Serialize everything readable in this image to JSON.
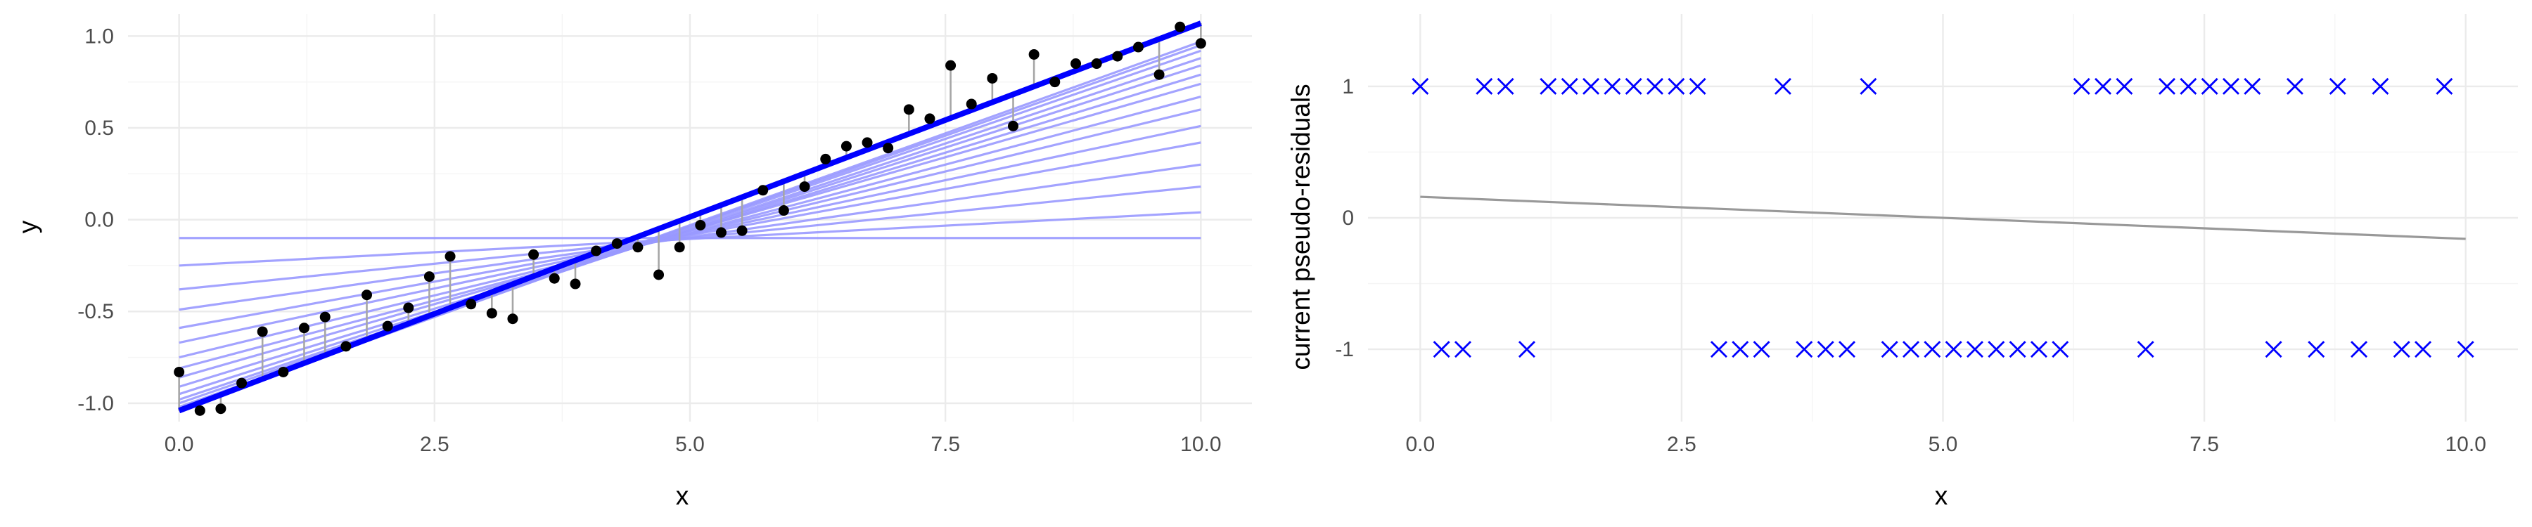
{
  "colors": {
    "fit_line": "#0000ff",
    "history_line": "#9999ff",
    "points": "#000000",
    "residual_segment": "#a6a6a6",
    "smoother": "#999999",
    "cross": "#0000ff",
    "grid_major": "#ebebeb",
    "grid_minor": "#f5f5f5"
  },
  "chart_data": [
    {
      "type": "scatter",
      "xlabel": "x",
      "ylabel": "y",
      "xlim": [
        -0.5,
        10.5
      ],
      "ylim": [
        -1.1,
        1.12
      ],
      "x_ticks": [
        0,
        2.5,
        5,
        7.5,
        10
      ],
      "x_tick_labels": [
        "0.0",
        "2.5",
        "5.0",
        "7.5",
        "10.0"
      ],
      "y_ticks": [
        -1,
        -0.5,
        0,
        0.5,
        1
      ],
      "y_tick_labels": [
        "-1.0",
        "-0.5",
        "0.0",
        "0.5",
        "1.0"
      ],
      "grid": true,
      "x": [
        0,
        0.204,
        0.408,
        0.612,
        0.816,
        1.02,
        1.224,
        1.429,
        1.633,
        1.837,
        2.041,
        2.245,
        2.449,
        2.653,
        2.857,
        3.061,
        3.265,
        3.469,
        3.673,
        3.878,
        4.082,
        4.286,
        4.49,
        4.694,
        4.898,
        5.102,
        5.306,
        5.51,
        5.714,
        5.918,
        6.122,
        6.327,
        6.531,
        6.735,
        6.939,
        7.143,
        7.347,
        7.551,
        7.755,
        7.959,
        8.163,
        8.367,
        8.571,
        8.776,
        8.98,
        9.184,
        9.388,
        9.592,
        9.796,
        10
      ],
      "y": [
        -0.83,
        -1.04,
        -1.03,
        -0.89,
        -0.61,
        -0.83,
        -0.59,
        -0.53,
        -0.69,
        -0.41,
        -0.58,
        -0.48,
        -0.31,
        -0.2,
        -0.46,
        -0.51,
        -0.54,
        -0.19,
        -0.32,
        -0.35,
        -0.17,
        -0.13,
        -0.15,
        -0.3,
        -0.15,
        -0.03,
        -0.07,
        -0.06,
        0.16,
        0.05,
        0.18,
        0.33,
        0.4,
        0.42,
        0.39,
        0.6,
        0.55,
        0.84,
        0.63,
        0.77,
        0.51,
        0.9,
        0.75,
        0.85,
        0.85,
        0.89,
        0.94,
        0.79,
        1.05,
        0.96
      ],
      "fitted_lines": [
        {
          "intercept": -0.1,
          "slope": 0.0
        },
        {
          "intercept": -0.25,
          "slope": 0.029
        },
        {
          "intercept": -0.38,
          "slope": 0.056
        },
        {
          "intercept": -0.49,
          "slope": 0.079
        },
        {
          "intercept": -0.59,
          "slope": 0.101
        },
        {
          "intercept": -0.67,
          "slope": 0.118
        },
        {
          "intercept": -0.75,
          "slope": 0.135
        },
        {
          "intercept": -0.81,
          "slope": 0.148
        },
        {
          "intercept": -0.86,
          "slope": 0.16
        },
        {
          "intercept": -0.91,
          "slope": 0.17
        },
        {
          "intercept": -0.95,
          "slope": 0.179
        },
        {
          "intercept": -0.98,
          "slope": 0.186
        },
        {
          "intercept": -1.0,
          "slope": 0.192
        },
        {
          "intercept": -1.02,
          "slope": 0.197
        },
        {
          "intercept": -1.03,
          "slope": 0.2
        }
      ],
      "current_fit": {
        "intercept": -1.04,
        "slope": 0.211
      }
    },
    {
      "type": "scatter",
      "xlabel": "x",
      "ylabel": "current pseudo-residuals",
      "xlim": [
        -0.5,
        10.5
      ],
      "ylim": [
        -1.55,
        1.55
      ],
      "x_ticks": [
        0,
        2.5,
        5,
        7.5,
        10
      ],
      "x_tick_labels": [
        "0.0",
        "2.5",
        "5.0",
        "7.5",
        "10.0"
      ],
      "y_ticks": [
        -1,
        0,
        1
      ],
      "y_tick_labels": [
        "-1",
        "0",
        "1"
      ],
      "grid": true,
      "x": [
        0,
        0.204,
        0.408,
        0.612,
        0.816,
        1.02,
        1.224,
        1.429,
        1.633,
        1.837,
        2.041,
        2.245,
        2.449,
        2.653,
        2.857,
        3.061,
        3.265,
        3.469,
        3.673,
        3.878,
        4.082,
        4.286,
        4.49,
        4.694,
        4.898,
        5.102,
        5.306,
        5.51,
        5.714,
        5.918,
        6.122,
        6.327,
        6.531,
        6.735,
        6.939,
        7.143,
        7.347,
        7.551,
        7.755,
        7.959,
        8.163,
        8.367,
        8.571,
        8.776,
        8.98,
        9.184,
        9.388,
        9.592,
        9.796,
        10
      ],
      "y": [
        1,
        -1,
        -1,
        1,
        1,
        -1,
        1,
        1,
        1,
        1,
        1,
        1,
        1,
        1,
        -1,
        -1,
        -1,
        1,
        -1,
        -1,
        -1,
        1,
        -1,
        -1,
        -1,
        -1,
        -1,
        -1,
        -1,
        -1,
        -1,
        1,
        1,
        1,
        -1,
        1,
        1,
        1,
        1,
        1,
        -1,
        1,
        -1,
        1,
        -1,
        1,
        -1,
        -1,
        1,
        -1
      ],
      "smoother": {
        "x": [
          0,
          10
        ],
        "y": [
          0.16,
          -0.16
        ]
      }
    }
  ]
}
